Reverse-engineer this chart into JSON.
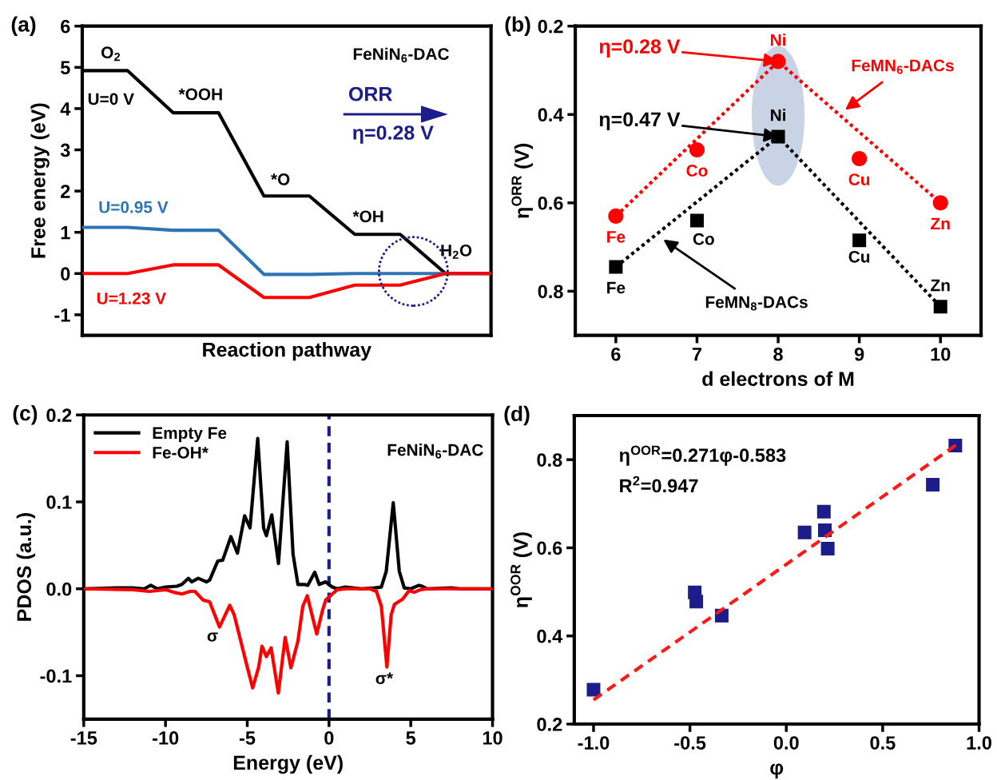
{
  "chart_data": [
    {
      "type": "line",
      "title": "(a)",
      "xlabel": "Reaction pathway",
      "ylabel": "Free energy (eV)",
      "categories": [
        null,
        null,
        null,
        null,
        null,
        null,
        null,
        null,
        null,
        null
      ],
      "series": [
        {
          "name": "U=0 V",
          "color": "#000000",
          "values": [
            4.92,
            4.92,
            3.9,
            3.9,
            1.88,
            1.88,
            0.95,
            0.95,
            0,
            0
          ]
        },
        {
          "name": "U=0.95 V",
          "color": "#2e75b6",
          "values": [
            1.12,
            1.12,
            1.05,
            1.05,
            -0.02,
            -0.02,
            0,
            0,
            0,
            0
          ]
        },
        {
          "name": "U=1.23 V",
          "color": "#ff0000",
          "values": [
            0,
            0,
            0.21,
            0.21,
            -0.58,
            -0.58,
            -0.28,
            -0.28,
            0,
            0
          ]
        }
      ],
      "ylim": [
        -1.5,
        6
      ],
      "yticks": [
        -1,
        0,
        1,
        2,
        3,
        4,
        5,
        6
      ],
      "tick_labels": "y",
      "annotations": [
        "O$_{2}$",
        "*OOH",
        "*O",
        "*OH",
        "H$_{2}$O",
        "FeNiN$_{6}$-DAC",
        "ORR",
        "η=0.28 V"
      ]
    },
    {
      "type": "scatter",
      "title": "(b)",
      "xlabel": "d electrons of M",
      "ylabel": "η$^{ORR}$ (V)",
      "x": [
        6,
        7,
        8,
        9,
        10
      ],
      "series": [
        {
          "color": "#ff0000",
          "marker": "circle",
          "values": [
            0.63,
            0.48,
            0.28,
            0.5,
            0.6
          ]
        },
        {
          "color": "#000000",
          "marker": "square",
          "values": [
            0.745,
            0.64,
            0.45,
            0.685,
            0.835
          ]
        },
        {
          "type": "line",
          "name": "FeMN$_{6}$-DACs",
          "color": "#ff0000",
          "line_style": "dotted",
          "x": [
            6,
            8,
            10
          ],
          "values": [
            0.63,
            0.28,
            0.6
          ]
        },
        {
          "type": "line",
          "name": "FeMN$_{8}$-DACs",
          "color": "#000000",
          "line_style": "dotted",
          "x": [
            6,
            8,
            10
          ],
          "values": [
            0.745,
            0.45,
            0.835
          ]
        }
      ],
      "xlim": [
        5.5,
        10.5
      ],
      "xticks": [
        6,
        7,
        8,
        9,
        10
      ],
      "ylim": [
        0.9,
        0.2
      ],
      "yticks": [
        0.2,
        0.4,
        0.6,
        0.8
      ],
      "annotations": [
        {
          "text": "η=0.28 V",
          "x": 8,
          "y": 0.28
        },
        {
          "text": "η=0.47 V",
          "x": 8,
          "y": 0.45
        },
        {
          "text": "Fe",
          "x": 6,
          "y": 0.63
        },
        {
          "text": "Co",
          "x": 7,
          "y": 0.48
        },
        {
          "text": "Ni",
          "x": 8,
          "y": 0.28
        },
        {
          "text": "Cu",
          "x": 9,
          "y": 0.5
        },
        {
          "text": "Zn",
          "x": 10,
          "y": 0.6
        },
        {
          "text": "Fe",
          "x": 6,
          "y": 0.745
        },
        {
          "text": "Co",
          "x": 7,
          "y": 0.64
        },
        {
          "text": "Ni",
          "x": 8,
          "y": 0.45
        },
        {
          "text": "Cu",
          "x": 9,
          "y": 0.685
        },
        {
          "text": "Zn",
          "x": 10,
          "y": 0.835
        }
      ]
    },
    {
      "type": "line",
      "title": "(c)",
      "xlabel": "Energy (eV)",
      "ylabel": "PDOS (a.u.)",
      "series": [
        {
          "name": "Empty Fe",
          "color": "#000000",
          "x": [
            -15,
            -13,
            -12,
            -11.3,
            -10.9,
            -10.5,
            -10,
            -9.3,
            -9,
            -8.6,
            -8.4,
            -8,
            -7.5,
            -7.3,
            -6.8,
            -6.5,
            -6,
            -5.6,
            -5.16,
            -4.83,
            -4.36,
            -4,
            -3.83,
            -3.5,
            -3.09,
            -2.56,
            -2.2,
            -1.9,
            -1.5,
            -1.3,
            -0.87,
            -0.6,
            -0.2,
            0.2,
            0.5,
            1,
            2,
            2.8,
            3.2,
            3.5,
            3.93,
            4.3,
            4.6,
            5,
            5.5,
            5.7,
            6,
            7.5,
            8,
            10
          ],
          "values": [
            0,
            0.001,
            0.001,
            0,
            0.004,
            0,
            0.002,
            0.003,
            0.005,
            0.012,
            0.008,
            0.012,
            0.008,
            0.01,
            0.032,
            0.033,
            0.06,
            0.041,
            0.084,
            0.07,
            0.173,
            0.07,
            0.061,
            0.085,
            0.029,
            0.169,
            0.04,
            0.005,
            0.005,
            0.004,
            0.019,
            0.005,
            0.008,
            0.002,
            0,
            0.002,
            0,
            0.001,
            0.002,
            0.02,
            0.099,
            0.02,
            0.001,
            0,
            0.004,
            0.003,
            0,
            0.001,
            0,
            0
          ]
        },
        {
          "name": "Fe-OH*",
          "color": "#ff0000",
          "x": [
            -15,
            -12,
            -11,
            -10,
            -9.5,
            -9,
            -8.5,
            -8.2,
            -7.7,
            -7.3,
            -6.7,
            -6.07,
            -5.8,
            -5.4,
            -5,
            -4.67,
            -4.3,
            -4.1,
            -3.83,
            -3.54,
            -3.1,
            -2.68,
            -2.33,
            -1.9,
            -1.6,
            -1.33,
            -0.75,
            -0.4,
            -0.2,
            0.2,
            0.5,
            1,
            2.5,
            2.9,
            3.2,
            3.54,
            3.8,
            4,
            4.5,
            4.9,
            5.2,
            5.6,
            6,
            10
          ],
          "values": [
            0,
            -0.001,
            -0.003,
            -0.001,
            -0.004,
            -0.006,
            -0.003,
            -0.003,
            -0.013,
            -0.015,
            -0.044,
            -0.019,
            -0.03,
            -0.06,
            -0.09,
            -0.114,
            -0.09,
            -0.066,
            -0.078,
            -0.068,
            -0.12,
            -0.056,
            -0.091,
            -0.06,
            -0.02,
            -0.008,
            -0.052,
            -0.025,
            -0.013,
            -0.006,
            -0.001,
            0,
            0,
            -0.003,
            -0.02,
            -0.09,
            -0.03,
            -0.018,
            -0.012,
            -0.002,
            -0.004,
            -0.001,
            0,
            0
          ]
        }
      ],
      "xlim": [
        -15,
        10
      ],
      "xticks": [
        -15,
        -10,
        -5,
        0,
        5,
        10
      ],
      "ylim": [
        -0.15,
        0.2
      ],
      "yticks": [
        -0.1,
        {
          "value": 0,
          "label": "0.0"
        },
        0.1,
        0.2
      ],
      "ref_lines": [
        {
          "axis": "x",
          "value": 0,
          "color": "#1c1c8a",
          "line_style": "dashed"
        }
      ],
      "legend": "top left",
      "annotations": [
        "σ",
        "σ*",
        "FeNiN$_{6}$-DAC"
      ]
    },
    {
      "type": "scatter",
      "title": "(d)",
      "xlabel": "φ",
      "ylabel": "η$^{OOR}$ (V)",
      "marker": "square",
      "x": [
        -1.0,
        -0.475,
        -0.467,
        -0.335,
        0.095,
        0.195,
        0.2,
        0.215,
        0.76,
        0.877
      ],
      "series": [
        {
          "color": "#1c1c8a",
          "values": [
            0.278,
            0.499,
            0.478,
            0.446,
            0.635,
            0.682,
            0.64,
            0.598,
            0.743,
            0.832
          ]
        },
        {
          "type": "line",
          "color": "#ff1a1a",
          "line_style": "dashed",
          "marker": "none",
          "x": [
            -1.0,
            0.88
          ],
          "values": [
            0.255,
            0.833
          ]
        }
      ],
      "xlim": [
        -1.1,
        1.0
      ],
      "xticks": [
        {
          "value": -1,
          "label": "-1.0"
        },
        {
          "value": -0.5,
          "label": "-0.5"
        },
        {
          "value": 0,
          "label": "0.0"
        },
        {
          "value": 0.5,
          "label": "0.5"
        },
        {
          "value": 1,
          "label": "1.0"
        }
      ],
      "ylim": [
        0.2,
        0.9
      ],
      "yticks": [
        0.2,
        0.4,
        0.6,
        0.8
      ],
      "annotations": [
        "η$^{OOR}$=0.271φ-0.583",
        "R$^{2}$=0.947"
      ]
    }
  ]
}
